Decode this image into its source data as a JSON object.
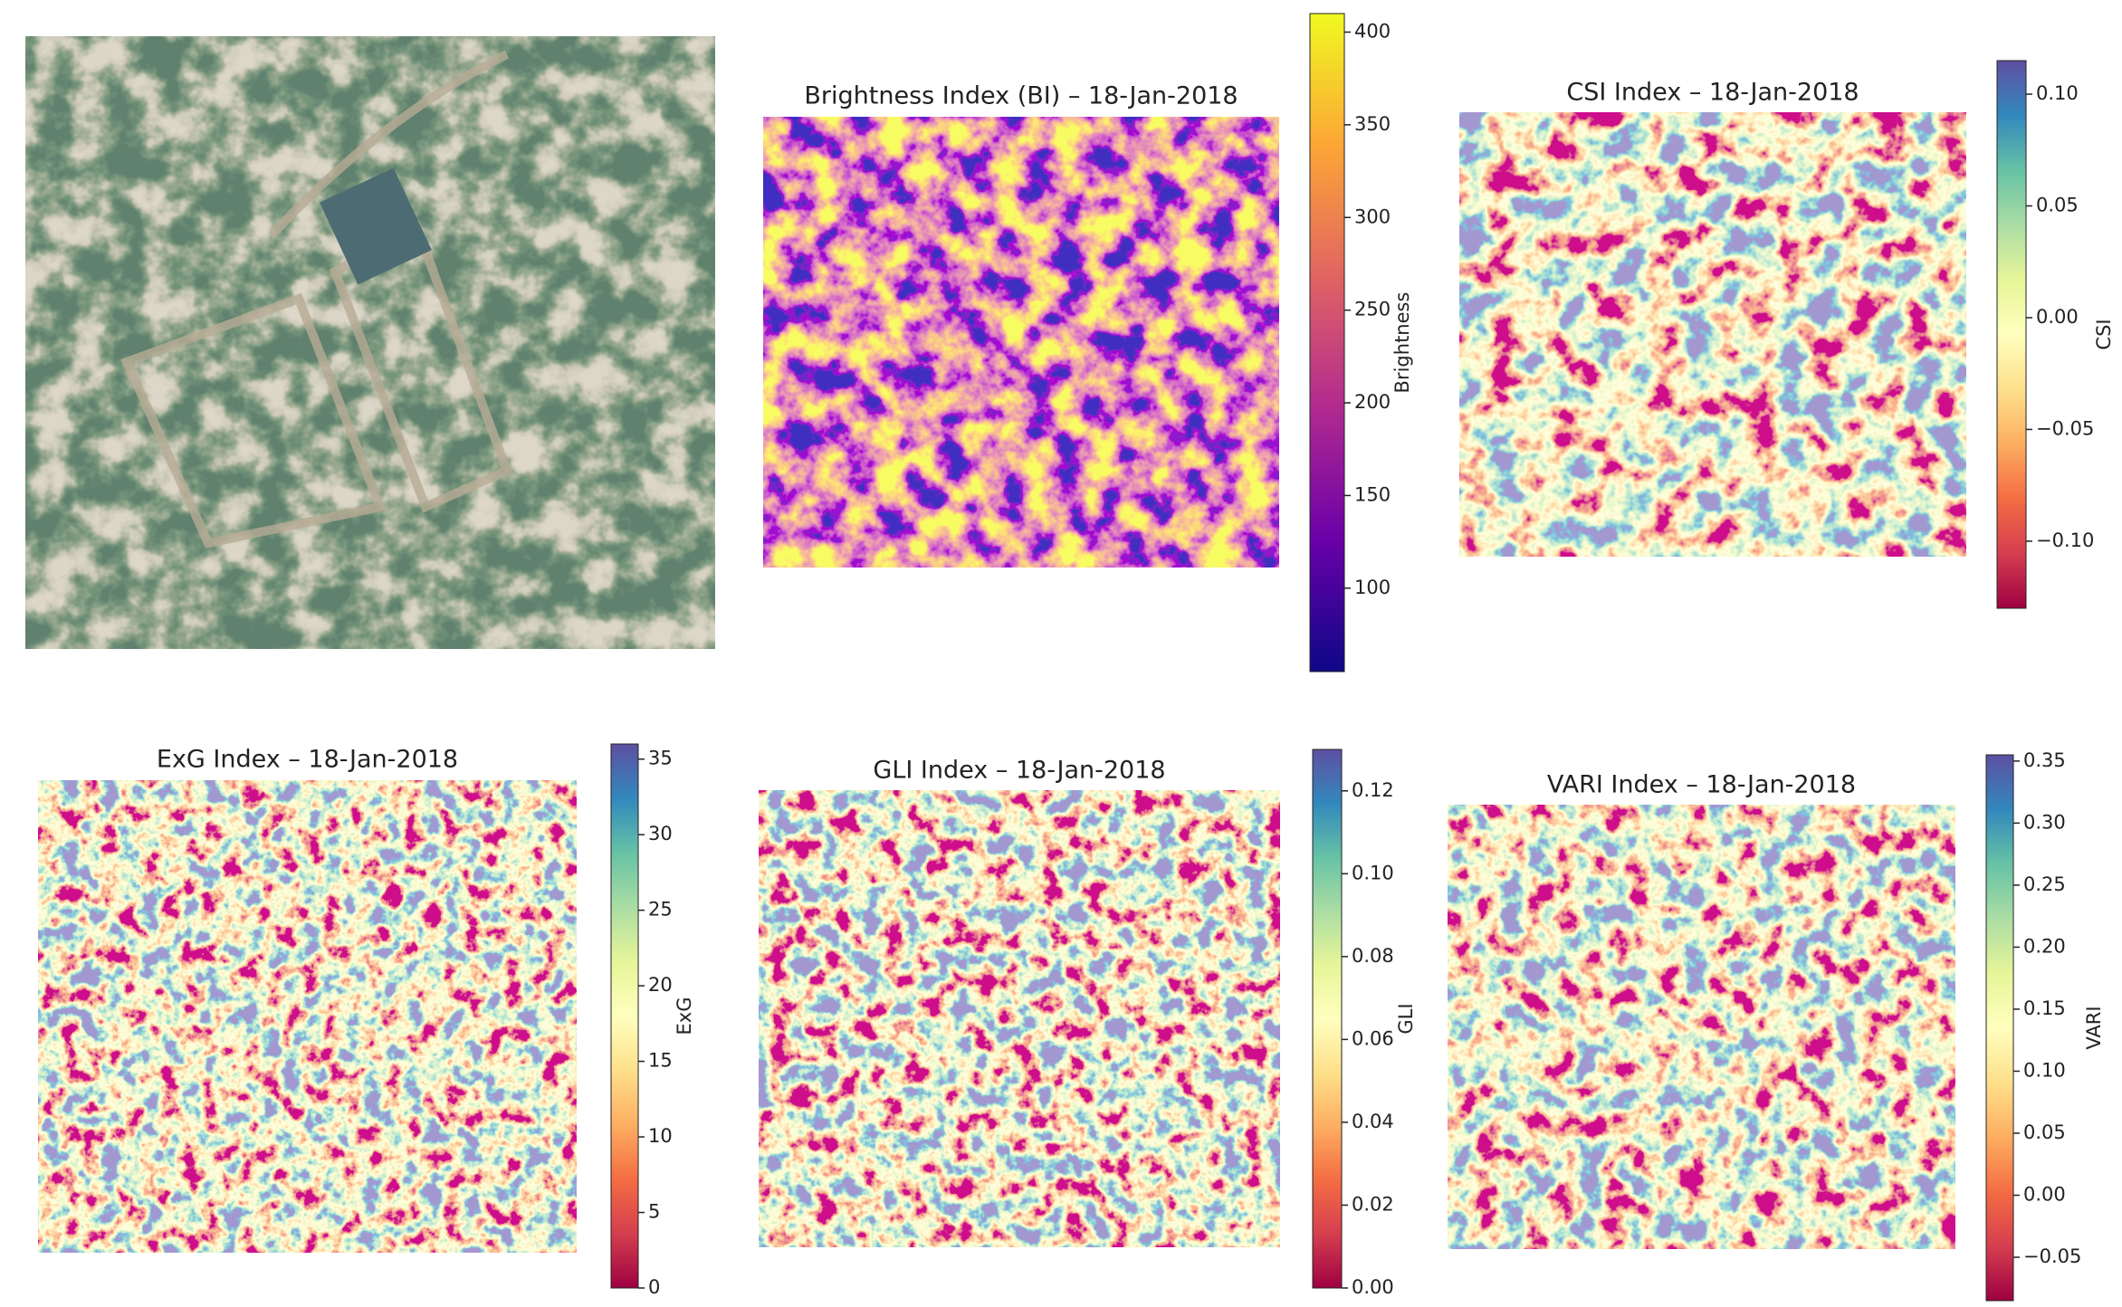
{
  "chart_data": [
    {
      "type": "heatmap",
      "title": "Brightness Index (BI) – 18-Jan-2018",
      "colorbar_label": "Brightness",
      "colormap": "plasma",
      "clim": [
        55,
        410
      ],
      "cticks": [
        100,
        150,
        200,
        250,
        300,
        350,
        400
      ]
    },
    {
      "type": "heatmap",
      "title": "CSI Index – 18-Jan-2018",
      "colorbar_label": "CSI",
      "colormap": "Spectral",
      "clim": [
        -0.13,
        0.115
      ],
      "cticks": [
        {
          "value": -0.1,
          "label": "−0.10"
        },
        {
          "value": -0.05,
          "label": "−0.05"
        },
        {
          "value": 0,
          "label": "0.00"
        },
        0.05,
        {
          "value": 0.1,
          "label": "0.10"
        }
      ]
    },
    {
      "type": "heatmap",
      "title": "ExG Index – 18-Jan-2018",
      "colorbar_label": "ExG",
      "colormap": "Spectral",
      "clim": [
        0,
        36
      ],
      "cticks": [
        0,
        5,
        10,
        15,
        20,
        25,
        30,
        35
      ]
    },
    {
      "type": "heatmap",
      "title": "GLI Index – 18-Jan-2018",
      "colorbar_label": "GLI",
      "colormap": "Spectral",
      "clim": [
        0,
        0.13
      ],
      "cticks": [
        {
          "value": 0,
          "label": "0.00"
        },
        0.02,
        0.04,
        0.06,
        0.08,
        {
          "value": 0.1,
          "label": "0.10"
        },
        0.12
      ]
    },
    {
      "type": "heatmap",
      "title": "VARI Index – 18-Jan-2018",
      "colorbar_label": "VARI",
      "colormap": "Spectral",
      "clim": [
        -0.085,
        0.355
      ],
      "cticks": [
        {
          "value": -0.05,
          "label": "−0.05"
        },
        {
          "value": 0,
          "label": "0.00"
        },
        0.05,
        {
          "value": 0.1,
          "label": "0.10"
        },
        0.15,
        {
          "value": 0.2,
          "label": "0.20"
        },
        0.25,
        {
          "value": 0.3,
          "label": "0.30"
        },
        0.35
      ]
    }
  ]
}
